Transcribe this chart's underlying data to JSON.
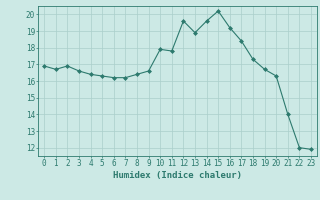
{
  "x": [
    0,
    1,
    2,
    3,
    4,
    5,
    6,
    7,
    8,
    9,
    10,
    11,
    12,
    13,
    14,
    15,
    16,
    17,
    18,
    19,
    20,
    21,
    22,
    23
  ],
  "y": [
    16.9,
    16.7,
    16.9,
    16.6,
    16.4,
    16.3,
    16.2,
    16.2,
    16.4,
    16.6,
    17.9,
    17.8,
    19.6,
    18.9,
    19.6,
    20.2,
    19.2,
    18.4,
    17.3,
    16.7,
    16.3,
    14.0,
    12.0,
    11.9
  ],
  "line_color": "#2d7a6e",
  "marker": "D",
  "marker_size": 2,
  "bg_color": "#cce9e5",
  "grid_color": "#aacfcb",
  "tick_color": "#2d7a6e",
  "xlabel": "Humidex (Indice chaleur)",
  "xlabel_fontsize": 6.5,
  "tick_fontsize": 5.5,
  "ylim": [
    11.5,
    20.5
  ],
  "yticks": [
    12,
    13,
    14,
    15,
    16,
    17,
    18,
    19,
    20
  ],
  "xlim": [
    -0.5,
    23.5
  ]
}
